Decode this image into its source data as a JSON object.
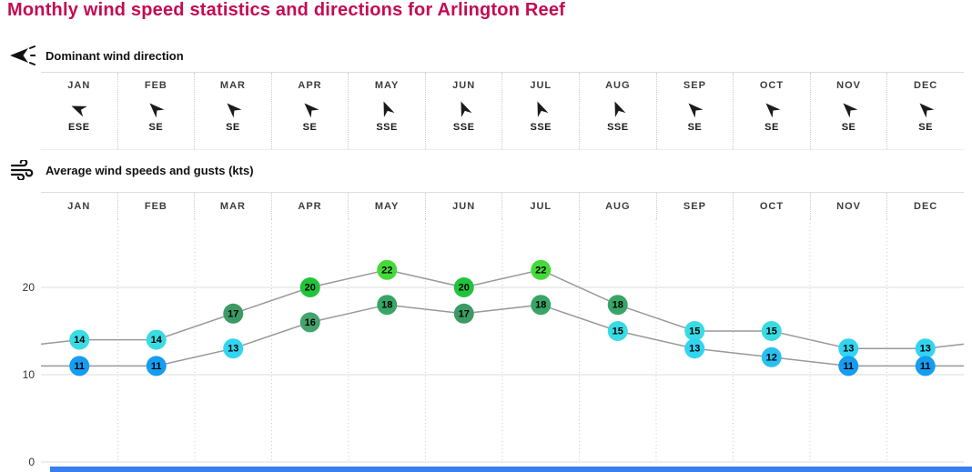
{
  "page": {
    "title": "Monthly wind speed statistics and directions for Arlington Reef"
  },
  "months": [
    "JAN",
    "FEB",
    "MAR",
    "APR",
    "MAY",
    "JUN",
    "JUL",
    "AUG",
    "SEP",
    "OCT",
    "NOV",
    "DEC"
  ],
  "direction_section": {
    "heading": "Dominant wind direction",
    "directions": [
      "ESE",
      "SE",
      "SE",
      "SE",
      "SSE",
      "SSE",
      "SSE",
      "SSE",
      "SE",
      "SE",
      "SE",
      "SE"
    ]
  },
  "speed_section": {
    "heading": "Average wind speeds and gusts (kts)"
  },
  "chart_data": {
    "type": "line",
    "title": "Average wind speeds and gusts (kts)",
    "categories": [
      "JAN",
      "FEB",
      "MAR",
      "APR",
      "MAY",
      "JUN",
      "JUL",
      "AUG",
      "SEP",
      "OCT",
      "NOV",
      "DEC"
    ],
    "series": [
      {
        "name": "gusts",
        "values": [
          14,
          14,
          17,
          20,
          22,
          20,
          22,
          18,
          15,
          15,
          13,
          13
        ]
      },
      {
        "name": "average_wind_speed",
        "values": [
          11,
          11,
          13,
          16,
          18,
          17,
          18,
          15,
          13,
          12,
          11,
          11
        ]
      }
    ],
    "yticks": [
      0,
      10,
      20
    ],
    "ylim": [
      0,
      27
    ],
    "grid": "horizontal solid lines at yticks, dotted vertical month separators",
    "legend_position": "none",
    "line_color": "#999999",
    "bubble_text_color": "#000000",
    "value_colors": {
      "11": "#149df1",
      "12": "#29bff0",
      "13": "#31d5f2",
      "14": "#3adbe3",
      "15": "#3adbe3",
      "16": "#45a36c",
      "17": "#3c9b64",
      "18": "#38a567",
      "20": "#1fc43a",
      "22": "#45da38"
    }
  },
  "colors": {
    "title": "#c30b53",
    "heading": "#111111",
    "month_label": "#3d3d3d",
    "grid_line": "#dddddd",
    "dotted_separator": "#cccccc",
    "axis_label": "#333333",
    "bottom_strip": "#3a7df0"
  }
}
